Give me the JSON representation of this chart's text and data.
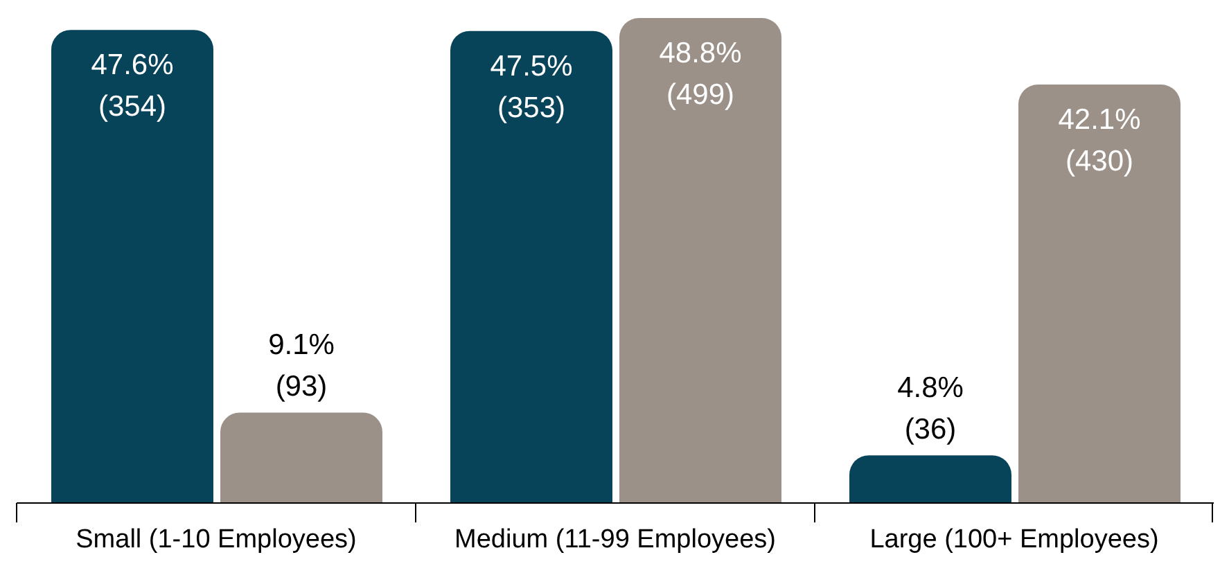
{
  "chart_data": {
    "type": "bar",
    "categories": [
      "Small (1-10 Employees)",
      "Medium (11-99 Employees)",
      "Large (100+ Employees)"
    ],
    "series": [
      {
        "color": "#07445a",
        "values": [
          47.6,
          47.5,
          4.8
        ],
        "value_labels": [
          "47.6%\n(354)",
          "47.5%\n(353)",
          "4.8%\n(36)"
        ]
      },
      {
        "color": "#9b9189",
        "values": [
          9.1,
          48.8,
          42.1
        ],
        "value_labels": [
          "9.1%\n(93)",
          "48.8%\n(499)",
          "42.1%\n(430)"
        ]
      }
    ]
  }
}
